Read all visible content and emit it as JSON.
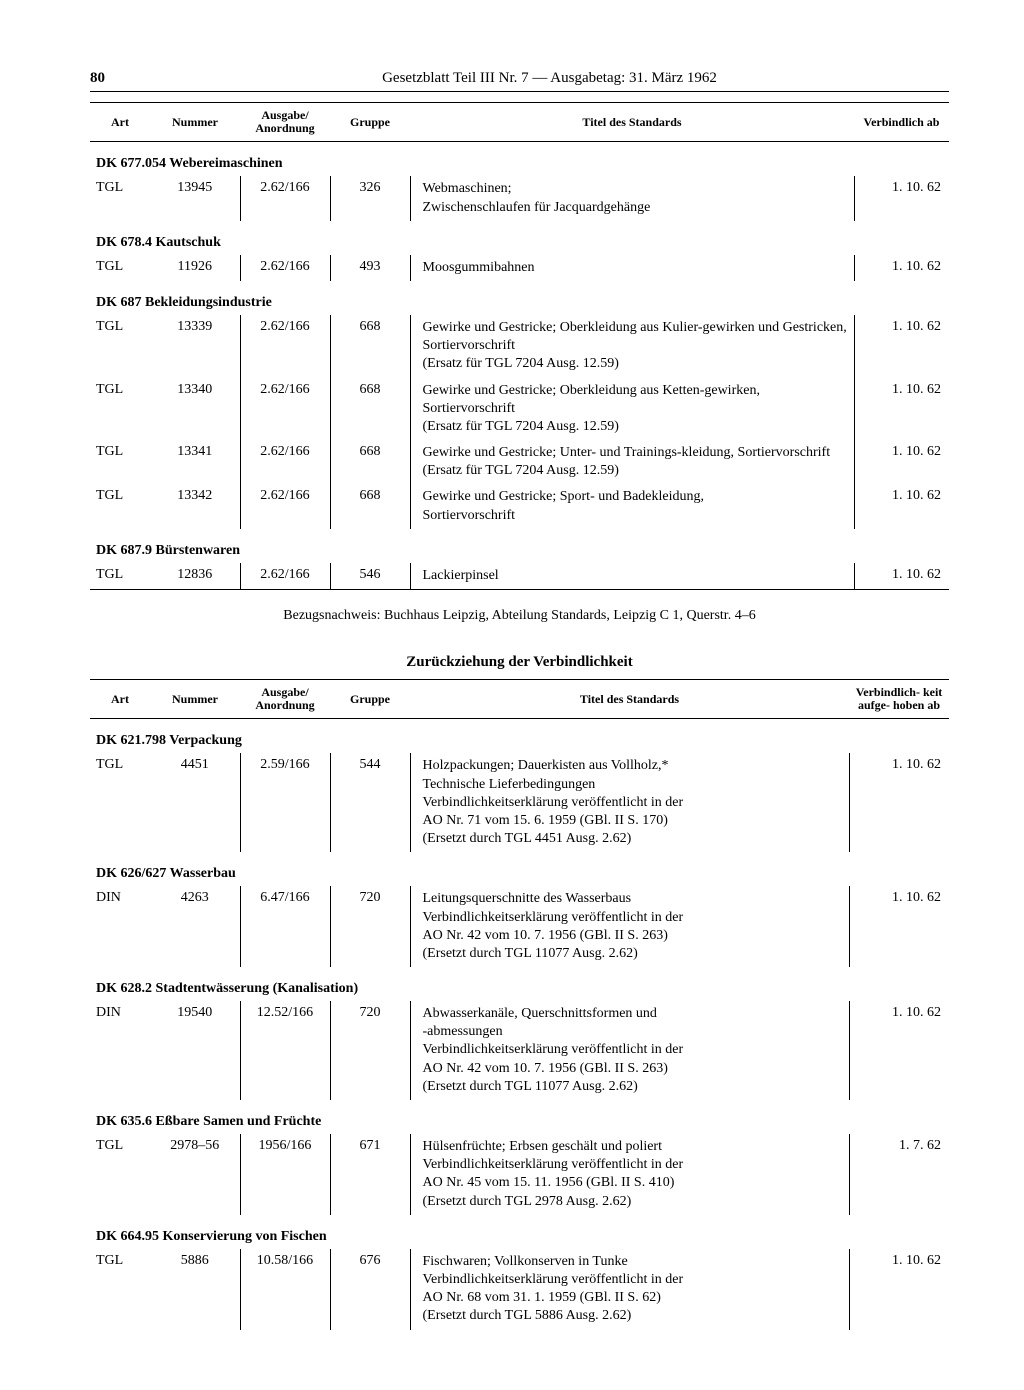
{
  "header": {
    "page_number": "80",
    "title": "Gesetzblatt Teil III Nr. 7 — Ausgabetag: 31. März 1962"
  },
  "columns1": {
    "art": "Art",
    "nummer": "Nummer",
    "ausgabe": "Ausgabe/\nAnordnung",
    "gruppe": "Gruppe",
    "titel": "Titel des Standards",
    "verbindlich": "Verbindlich\nab"
  },
  "sections1": [
    {
      "heading": "DK 677.054 Webereimaschinen",
      "rows": [
        {
          "art": "TGL",
          "nummer": "13945",
          "ausgabe": "2.62/166",
          "gruppe": "326",
          "titel": "Webmaschinen;\nZwischenschlaufen für Jacquardgehänge",
          "verbindlich": "1. 10. 62"
        }
      ]
    },
    {
      "heading": "DK 678.4 Kautschuk",
      "rows": [
        {
          "art": "TGL",
          "nummer": "11926",
          "ausgabe": "2.62/166",
          "gruppe": "493",
          "titel": "Moosgummibahnen",
          "verbindlich": "1. 10. 62"
        }
      ]
    },
    {
      "heading": "DK 687 Bekleidungsindustrie",
      "rows": [
        {
          "art": "TGL",
          "nummer": "13339",
          "ausgabe": "2.62/166",
          "gruppe": "668",
          "titel": "Gewirke und Gestricke; Oberkleidung aus Kulier-gewirken und Gestricken, Sortiervorschrift\n(Ersatz für TGL 7204 Ausg. 12.59)",
          "verbindlich": "1. 10. 62"
        },
        {
          "art": "TGL",
          "nummer": "13340",
          "ausgabe": "2.62/166",
          "gruppe": "668",
          "titel": "Gewirke und Gestricke; Oberkleidung aus Ketten-gewirken, Sortiervorschrift\n(Ersatz für TGL 7204 Ausg. 12.59)",
          "verbindlich": "1. 10. 62"
        },
        {
          "art": "TGL",
          "nummer": "13341",
          "ausgabe": "2.62/166",
          "gruppe": "668",
          "titel": "Gewirke und Gestricke; Unter- und Trainings-kleidung, Sortiervorschrift\n(Ersatz für TGL 7204 Ausg. 12.59)",
          "verbindlich": "1. 10. 62"
        },
        {
          "art": "TGL",
          "nummer": "13342",
          "ausgabe": "2.62/166",
          "gruppe": "668",
          "titel": "Gewirke und Gestricke; Sport- und Badekleidung,\nSortiervorschrift",
          "verbindlich": "1. 10. 62"
        }
      ]
    },
    {
      "heading": "DK 687.9 Bürstenwaren",
      "rows": [
        {
          "art": "TGL",
          "nummer": "12836",
          "ausgabe": "2.62/166",
          "gruppe": "546",
          "titel": "Lackierpinsel",
          "verbindlich": "1. 10. 62"
        }
      ]
    }
  ],
  "source_note": "Bezugsnachweis: Buchhaus Leipzig, Abteilung Standards, Leipzig C 1, Querstr. 4–6",
  "heading2": "Zurückziehung der Verbindlichkeit",
  "columns2": {
    "art": "Art",
    "nummer": "Nummer",
    "ausgabe": "Ausgabe/\nAnordnung",
    "gruppe": "Gruppe",
    "titel": "Titel des Standards",
    "verbindlich": "Verbindlich-\nkeit aufge-\nhoben ab"
  },
  "sections2": [
    {
      "heading": "DK 621.798 Verpackung",
      "rows": [
        {
          "art": "TGL",
          "nummer": "4451",
          "ausgabe": "2.59/166",
          "gruppe": "544",
          "titel": "Holzpackungen; Dauerkisten aus Vollholz,*\nTechnische Lieferbedingungen\nVerbindlichkeitserklärung veröffentlicht in der\nAO Nr. 71 vom 15. 6. 1959 (GBl. II S. 170)\n(Ersetzt durch TGL 4451 Ausg. 2.62)",
          "verbindlich": "1. 10. 62"
        }
      ]
    },
    {
      "heading": "DK 626/627 Wasserbau",
      "rows": [
        {
          "art": "DIN",
          "nummer": "4263",
          "ausgabe": "6.47/166",
          "gruppe": "720",
          "titel": "Leitungsquerschnitte des Wasserbaus\nVerbindlichkeitserklärung veröffentlicht in der\nAO Nr. 42 vom 10. 7. 1956 (GBl. II S. 263)\n(Ersetzt durch TGL 11077 Ausg. 2.62)",
          "verbindlich": "1. 10. 62"
        }
      ]
    },
    {
      "heading": "DK 628.2 Stadtentwässerung (Kanalisation)",
      "rows": [
        {
          "art": "DIN",
          "nummer": "19540",
          "ausgabe": "12.52/166",
          "gruppe": "720",
          "titel": "Abwasserkanäle, Querschnittsformen und\n-abmessungen\nVerbindlichkeitserklärung veröffentlicht in der\nAO Nr. 42 vom 10. 7. 1956 (GBl. II S. 263)\n(Ersetzt durch TGL 11077 Ausg. 2.62)",
          "verbindlich": "1. 10. 62"
        }
      ]
    },
    {
      "heading": "DK 635.6 Eßbare Samen und Früchte",
      "rows": [
        {
          "art": "TGL",
          "nummer": "2978–56",
          "ausgabe": "1956/166",
          "gruppe": "671",
          "titel": "Hülsenfrüchte; Erbsen geschält und poliert\nVerbindlichkeitserklärung veröffentlicht in der\nAO Nr. 45 vom 15. 11. 1956 (GBl. II S. 410)\n(Ersetzt durch TGL 2978 Ausg. 2.62)",
          "verbindlich": "1.  7. 62"
        }
      ]
    },
    {
      "heading": "DK 664.95 Konservierung von Fischen",
      "rows": [
        {
          "art": "TGL",
          "nummer": "5886",
          "ausgabe": "10.58/166",
          "gruppe": "676",
          "titel": "Fischwaren; Vollkonserven in Tunke\nVerbindlichkeitserklärung veröffentlicht in der\nAO Nr. 68 vom 31. 1. 1959 (GBl. II S. 62)\n(Ersetzt durch TGL 5886 Ausg. 2.62)",
          "verbindlich": "1. 10. 62"
        }
      ]
    }
  ]
}
